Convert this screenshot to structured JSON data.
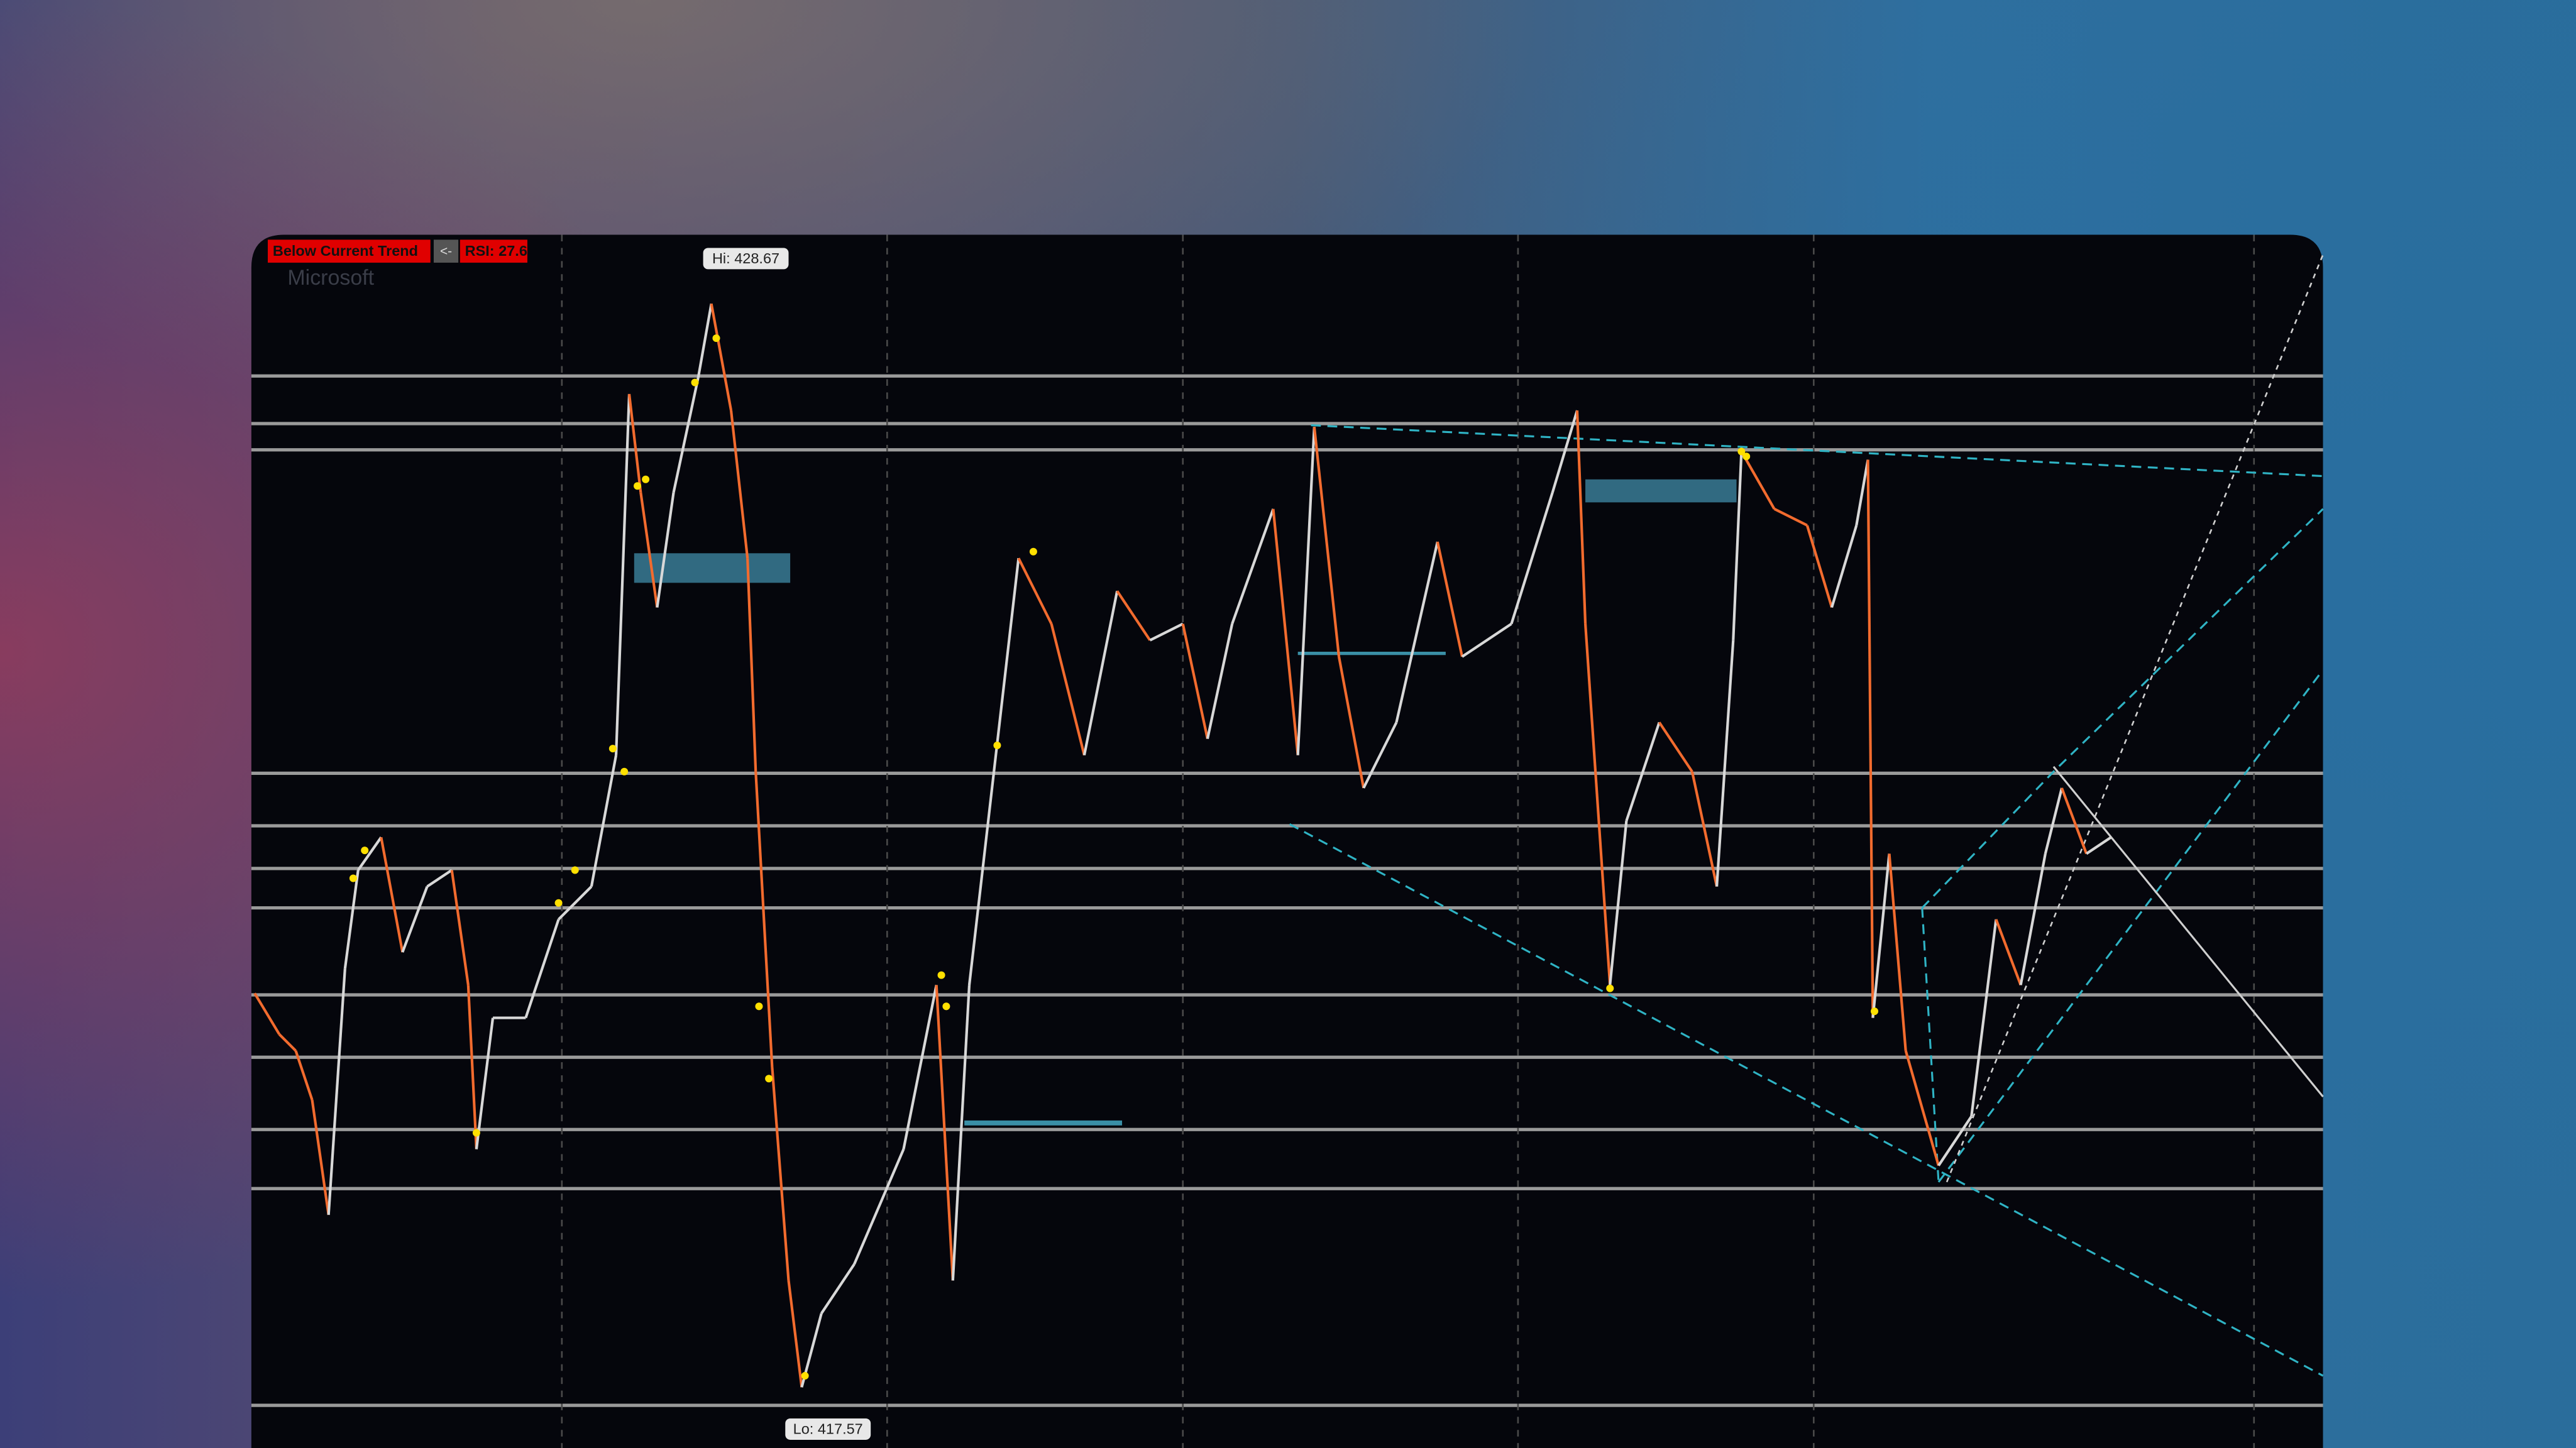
{
  "badges": {
    "trend": "Below Current Trend",
    "arrow": "<-",
    "rsi": "RSI: 27.6"
  },
  "watermark": "Microsoft",
  "high_label": "Hi: 428.67",
  "low_label": "Lo: 417.57"
}
